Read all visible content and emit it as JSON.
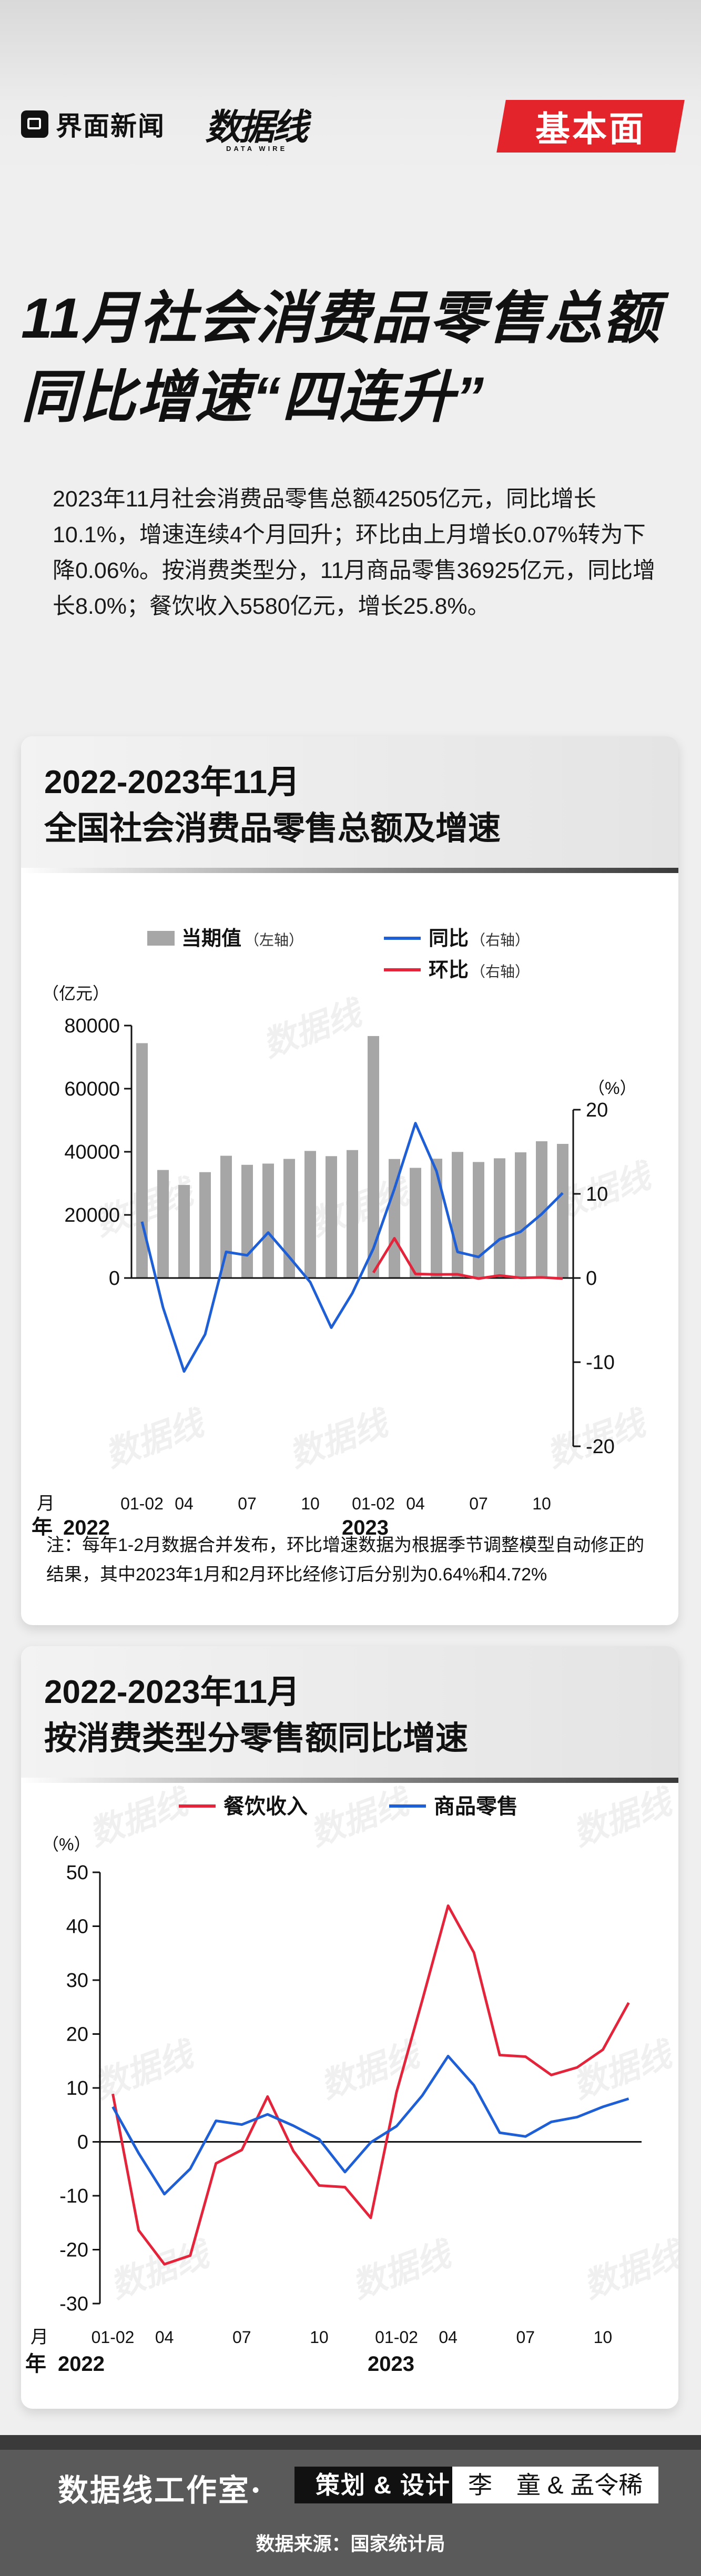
{
  "header": {
    "brand_name": "界面新闻",
    "logo_cn": "数据线",
    "logo_en": "DATA WIRE",
    "badge": "基本面",
    "title_line1": "11月社会消费品零售总额",
    "title_line2": "同比增速“四连升”"
  },
  "intro": "2023年11月社会消费品零售总额42505亿元，同比增长10.1%，增速连续4个月回升；环比由上月增长0.07%转为下降0.06%。按消费类型分，11月商品零售36925亿元，同比增长8.0%；餐饮收入5580亿元，增长25.8%。",
  "watermark": "数据线",
  "chart1": {
    "title_line1": "2022-2023年11月",
    "title_line2": "全国社会消费品零售总额及增速",
    "note": "注：每年1-2月数据合并发布，环比增速数据为根据季节调整模型自动修正的结果，其中2023年1月和2月环比经修订后分别为0.64%和4.72%"
  },
  "chart2": {
    "title_line1": "2022-2023年11月",
    "title_line2": "按消费类型分零售额同比增速"
  },
  "chart_data": [
    {
      "type": "bar",
      "title": "2022-2023年11月全国社会消费品零售总额及增速",
      "x_year_label": "年",
      "x_month_label": "月",
      "years": [
        "2022",
        "2023"
      ],
      "x": [
        "01-02",
        "03",
        "04",
        "05",
        "06",
        "07",
        "08",
        "09",
        "10",
        "11",
        "12",
        "01-02",
        "03",
        "04",
        "05",
        "06",
        "07",
        "08",
        "09",
        "10",
        "11"
      ],
      "tick_labels": [
        "01-02",
        "04",
        "07",
        "10",
        "01-02",
        "04",
        "07",
        "10"
      ],
      "y_left": {
        "unit": "（亿元）",
        "lim": [
          0,
          80000
        ],
        "ticks": [
          0,
          20000,
          40000,
          60000,
          80000
        ]
      },
      "y_right": {
        "unit": "（%）",
        "lim": [
          -20,
          20
        ],
        "ticks": [
          -20,
          -10,
          0,
          10,
          20
        ]
      },
      "legend": {
        "position": "top",
        "axis_left": "（左轴）",
        "axis_right": "（右轴）"
      },
      "series": [
        {
          "name": "当期值",
          "axis": "left",
          "kind": "bar",
          "color": "#a6a6a6",
          "values": [
            74426,
            34233,
            29483,
            33547,
            38742,
            35870,
            36258,
            37745,
            40271,
            38615,
            40542,
            76682,
            37715,
            34910,
            37803,
            39951,
            36761,
            37933,
            39826,
            43333,
            42505
          ]
        },
        {
          "name": "同比",
          "axis": "right",
          "kind": "line",
          "color": "#1f5fd6",
          "values": [
            6.7,
            -3.5,
            -11.1,
            -6.7,
            3.1,
            2.7,
            5.4,
            2.5,
            -0.5,
            -5.9,
            -1.8,
            3.5,
            10.6,
            18.4,
            12.7,
            3.1,
            2.5,
            4.6,
            5.5,
            7.6,
            10.1
          ]
        },
        {
          "name": "环比",
          "axis": "right",
          "kind": "line",
          "color": "#e3243b",
          "values": [
            null,
            null,
            null,
            null,
            null,
            null,
            null,
            null,
            null,
            null,
            null,
            0.64,
            4.72,
            0.49,
            0.42,
            0.44,
            -0.06,
            0.3,
            0.02,
            0.07,
            -0.06
          ]
        }
      ]
    },
    {
      "type": "line",
      "title": "2022-2023年11月按消费类型分零售额同比增速",
      "x_year_label": "年",
      "x_month_label": "月",
      "years": [
        "2022",
        "2023"
      ],
      "x": [
        "01-02",
        "03",
        "04",
        "05",
        "06",
        "07",
        "08",
        "09",
        "10",
        "11",
        "12",
        "01-02",
        "03",
        "04",
        "05",
        "06",
        "07",
        "08",
        "09",
        "10",
        "11"
      ],
      "tick_labels": [
        "01-02",
        "04",
        "07",
        "10",
        "01-02",
        "04",
        "07",
        "10"
      ],
      "y": {
        "unit": "（%）",
        "lim": [
          -30,
          50
        ],
        "ticks": [
          -30,
          -20,
          -10,
          0,
          10,
          20,
          30,
          40,
          50
        ]
      },
      "legend": {
        "position": "top"
      },
      "series": [
        {
          "name": "餐饮收入",
          "color": "#e3243b",
          "values": [
            8.9,
            -16.4,
            -22.7,
            -21.1,
            -4.0,
            -1.5,
            8.4,
            -1.7,
            -8.1,
            -8.4,
            -14.1,
            9.2,
            26.3,
            43.8,
            35.1,
            16.1,
            15.8,
            12.4,
            13.8,
            17.1,
            25.8
          ]
        },
        {
          "name": "商品零售",
          "color": "#1f5fd6",
          "values": [
            6.5,
            -2.1,
            -9.7,
            -5.0,
            3.9,
            3.2,
            5.1,
            3.0,
            0.5,
            -5.6,
            -0.1,
            2.9,
            8.6,
            15.9,
            10.5,
            1.7,
            1.0,
            3.7,
            4.6,
            6.5,
            8.0
          ]
        }
      ]
    }
  ],
  "footer": {
    "studio": "数据线工作室·",
    "role": "策划 & 设计",
    "names": "李　童 & 孟令稀",
    "source": "数据来源：国家统计局"
  }
}
